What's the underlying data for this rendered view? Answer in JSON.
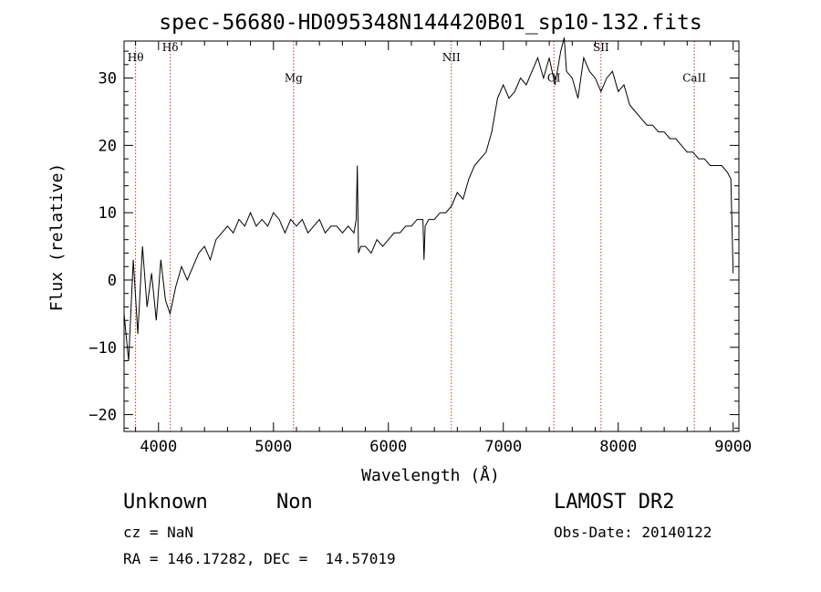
{
  "chart_data": {
    "type": "line",
    "title": "spec-56680-HD095348N144420B01_sp10-132.fits",
    "xlabel": "Wavelength (Å)",
    "ylabel": "Flux (relative)",
    "xlim": [
      3700,
      9050
    ],
    "ylim": [
      -22.5,
      35.5
    ],
    "xticks": [
      4000,
      5000,
      6000,
      7000,
      8000,
      9000
    ],
    "yticks": [
      -20,
      -10,
      0,
      10,
      20,
      30
    ],
    "grid": false,
    "series": [
      {
        "x": [
          3700,
          3740,
          3780,
          3820,
          3860,
          3900,
          3940,
          3980,
          4020,
          4060,
          4100,
          4150,
          4200,
          4250,
          4300,
          4350,
          4400,
          4450,
          4500,
          4550,
          4600,
          4650,
          4700,
          4750,
          4800,
          4850,
          4900,
          4950,
          5000,
          5050,
          5100,
          5150,
          5200,
          5250,
          5300,
          5350,
          5400,
          5450,
          5500,
          5550,
          5600,
          5650,
          5700,
          5720,
          5730,
          5740,
          5760,
          5800,
          5850,
          5900,
          5950,
          6000,
          6050,
          6100,
          6150,
          6200,
          6250,
          6300,
          6310,
          6320,
          6350,
          6400,
          6450,
          6500,
          6550,
          6600,
          6650,
          6700,
          6750,
          6800,
          6850,
          6900,
          6950,
          7000,
          7050,
          7100,
          7150,
          7200,
          7250,
          7300,
          7350,
          7400,
          7450,
          7500,
          7530,
          7550,
          7600,
          7650,
          7700,
          7750,
          7800,
          7850,
          7900,
          7950,
          8000,
          8050,
          8100,
          8150,
          8200,
          8250,
          8300,
          8350,
          8400,
          8450,
          8500,
          8550,
          8600,
          8650,
          8700,
          8750,
          8800,
          8850,
          8900,
          8950,
          8980,
          9000
        ],
        "values": [
          -5,
          -12,
          3,
          -8,
          5,
          -4,
          1,
          -6,
          3,
          -3,
          -5,
          -1,
          2,
          0,
          2,
          4,
          5,
          3,
          6,
          7,
          8,
          7,
          9,
          8,
          10,
          8,
          9,
          8,
          10,
          9,
          7,
          9,
          8,
          9,
          7,
          8,
          9,
          7,
          8,
          8,
          7,
          8,
          7,
          9,
          17,
          4,
          5,
          5,
          4,
          6,
          5,
          6,
          7,
          7,
          8,
          8,
          9,
          9,
          3,
          8,
          9,
          9,
          10,
          10,
          11,
          13,
          12,
          15,
          17,
          18,
          19,
          22,
          27,
          29,
          27,
          28,
          30,
          29,
          31,
          33,
          30,
          33,
          29,
          34,
          36,
          31,
          30,
          27,
          33,
          31,
          30,
          28,
          30,
          31,
          28,
          29,
          26,
          25,
          24,
          23,
          23,
          22,
          22,
          21,
          21,
          20,
          19,
          19,
          18,
          18,
          17,
          17,
          17,
          16,
          15,
          1
        ],
        "note_color": "#000000"
      }
    ],
    "spectral_lines": [
      {
        "label": "Hθ",
        "x": 3800,
        "label_y": 32.5
      },
      {
        "label": "Hδ",
        "x": 4102,
        "label_y": 34.0
      },
      {
        "label": "Mg",
        "x": 5175,
        "label_y": 29.5
      },
      {
        "label": "NII",
        "x": 6548,
        "label_y": 32.5
      },
      {
        "label": "OI",
        "x": 7440,
        "label_y": 29.5
      },
      {
        "label": "SII",
        "x": 7850,
        "label_y": 34.0
      },
      {
        "label": "CaII",
        "x": 8662,
        "label_y": 29.5
      }
    ],
    "line_marker_color": "#c0392b",
    "spectrum_color": "#000000"
  },
  "info": {
    "class": "Unknown",
    "subclass": "Non",
    "cz": "cz = NaN",
    "radec": "RA = 146.17282, DEC =  14.57019",
    "survey": "LAMOST DR2",
    "obsdate": "Obs-Date: 20140122"
  }
}
